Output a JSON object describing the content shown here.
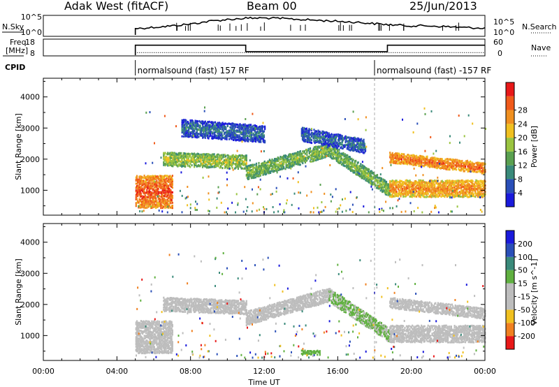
{
  "header": {
    "station": "Adak West (fitACF)",
    "beam": "Beam 00",
    "date": "25/Jun/2013"
  },
  "time_axis": {
    "ticks": [
      "00:00",
      "04:00",
      "08:00",
      "12:00",
      "16:00",
      "20:00",
      "00:00"
    ],
    "tick_hours": [
      0,
      4,
      8,
      12,
      16,
      20,
      24
    ],
    "label": "Time UT",
    "range_hours": [
      0,
      24
    ]
  },
  "colors": {
    "power": [
      "#1a1adc",
      "#2a4fb8",
      "#3a8a7a",
      "#5aa050",
      "#9ac440",
      "#f0c020",
      "#f09020",
      "#f05a1a",
      "#e81818"
    ],
    "velocity": [
      "#1a1adc",
      "#2a4fb8",
      "#3a8a7a",
      "#60b040",
      "#bdbdbd",
      "#bdbdbd",
      "#f0c020",
      "#f08020",
      "#e81818"
    ],
    "trace": "#000000",
    "ground_scatter": "#bdbdbd"
  },
  "panels": {
    "noise": {
      "left_label": "N.Sky",
      "right_label": "N.Search",
      "left_ticks": [
        "10^5",
        "10^0"
      ],
      "right_ticks": [
        "10^5",
        "10^0"
      ]
    },
    "freq": {
      "left_label_1": "Freq.",
      "left_label_2": "[MHz]",
      "right_label": "Nave",
      "left_ticks": [
        "18",
        "8"
      ],
      "right_ticks": [
        "60",
        "0"
      ]
    },
    "cpid": {
      "label": "CPID",
      "segments": [
        {
          "start_hour": 5.0,
          "text": "normalsound (fast) 157 RF"
        },
        {
          "start_hour": 18.0,
          "text": "normalsound (fast) -157 RF"
        }
      ]
    },
    "power": {
      "ylabel": "Slant Range [km]",
      "yticks": [
        "1000",
        "2000",
        "3000",
        "4000"
      ],
      "ytick_values": [
        1000,
        2000,
        3000,
        4000
      ],
      "ylim": [
        200,
        4600
      ],
      "colorbar_label": "Power [dB]",
      "colorbar_ticks": [
        "4",
        "8",
        "12",
        "16",
        "20",
        "24",
        "28"
      ]
    },
    "velocity": {
      "ylabel": "Slant Range [km]",
      "yticks": [
        "1000",
        "2000",
        "3000",
        "4000"
      ],
      "ytick_values": [
        1000,
        2000,
        3000,
        4000
      ],
      "ylim": [
        200,
        4600
      ],
      "colorbar_label": "Velocity [m s^-1]",
      "colorbar_ticks": [
        "200",
        "100",
        "50",
        "15",
        "-15",
        "-50",
        "-100",
        "-200"
      ]
    }
  },
  "chart_data": [
    {
      "type": "line",
      "panel": "noise",
      "x_hours": [
        5.0,
        6,
        7,
        8,
        9,
        10,
        11,
        12,
        13,
        14,
        15,
        16,
        17,
        18,
        19,
        20,
        21,
        22,
        23,
        24
      ],
      "series": [
        {
          "name": "N.Sky",
          "values": [
            0.35,
            0.42,
            0.5,
            0.6,
            0.75,
            0.85,
            0.92,
            0.93,
            0.9,
            0.85,
            0.8,
            0.75,
            0.7,
            0.62,
            0.55,
            0.5,
            0.5,
            0.45,
            0.4,
            0.38
          ]
        }
      ]
    },
    {
      "type": "line",
      "panel": "freq",
      "x_hours": [
        5.0,
        11.0,
        11.0,
        18.7,
        18.7,
        24
      ],
      "series": [
        {
          "name": "Freq.",
          "values": [
            14.5,
            14.5,
            10.3,
            10.3,
            14.5,
            14.5
          ]
        },
        {
          "name": "Nave",
          "values": [
            10,
            10,
            10,
            10,
            10,
            10
          ]
        }
      ]
    },
    {
      "type": "heatmap",
      "panel": "power",
      "xlabel": "Time UT",
      "ylabel": "Slant Range [km]",
      "x_range_hours": [
        0,
        24
      ],
      "y_range_km": [
        200,
        4600
      ],
      "data_start_hour": 5.0,
      "bands": [
        {
          "t0": 5.0,
          "t1": 7.0,
          "r_center": 950,
          "r_halfwidth": 550,
          "value": 26
        },
        {
          "t0": 6.5,
          "t1": 11.0,
          "r_center": 2000,
          "r_end": 1900,
          "r_halfwidth": 230,
          "value": 14
        },
        {
          "t0": 11.0,
          "t1": 15.5,
          "r_center": 1550,
          "r_end": 2300,
          "r_halfwidth": 220,
          "value": 12
        },
        {
          "t0": 15.5,
          "t1": 18.8,
          "r_center": 2300,
          "r_end": 1000,
          "r_halfwidth": 200,
          "value": 12
        },
        {
          "t0": 18.8,
          "t1": 24.0,
          "r_center": 1050,
          "r_end": 1050,
          "r_halfwidth": 300,
          "value": 22
        },
        {
          "t0": 18.8,
          "t1": 24.0,
          "r_center": 2050,
          "r_end": 1700,
          "r_halfwidth": 180,
          "value": 24
        },
        {
          "t0": 7.5,
          "t1": 12.0,
          "r_center": 3000,
          "r_end": 2800,
          "r_halfwidth": 250,
          "value": 4
        },
        {
          "t0": 14.0,
          "t1": 17.5,
          "r_center": 2800,
          "r_end": 2400,
          "r_halfwidth": 220,
          "value": 4
        }
      ]
    },
    {
      "type": "heatmap",
      "panel": "velocity",
      "xlabel": "Time UT",
      "ylabel": "Slant Range [km]",
      "x_range_hours": [
        0,
        24
      ],
      "y_range_km": [
        200,
        4600
      ],
      "data_start_hour": 5.0,
      "bands": [
        {
          "t0": 5.0,
          "t1": 7.0,
          "r_center": 950,
          "r_halfwidth": 550,
          "value": 0
        },
        {
          "t0": 6.5,
          "t1": 11.0,
          "r_center": 2000,
          "r_end": 1900,
          "r_halfwidth": 230,
          "value": 0
        },
        {
          "t0": 11.0,
          "t1": 15.5,
          "r_center": 1550,
          "r_end": 2300,
          "r_halfwidth": 220,
          "value": -20
        },
        {
          "t0": 15.5,
          "t1": 18.8,
          "r_center": 2300,
          "r_end": 1000,
          "r_halfwidth": 200,
          "value": 30
        },
        {
          "t0": 18.8,
          "t1": 24.0,
          "r_center": 1050,
          "r_end": 1050,
          "r_halfwidth": 300,
          "value": 0
        },
        {
          "t0": 18.8,
          "t1": 24.0,
          "r_center": 2050,
          "r_end": 1700,
          "r_halfwidth": 180,
          "value": 0
        },
        {
          "t0": 14.0,
          "t1": 15.0,
          "r_center": 450,
          "r_end": 450,
          "r_halfwidth": 80,
          "value": 60
        }
      ]
    }
  ]
}
